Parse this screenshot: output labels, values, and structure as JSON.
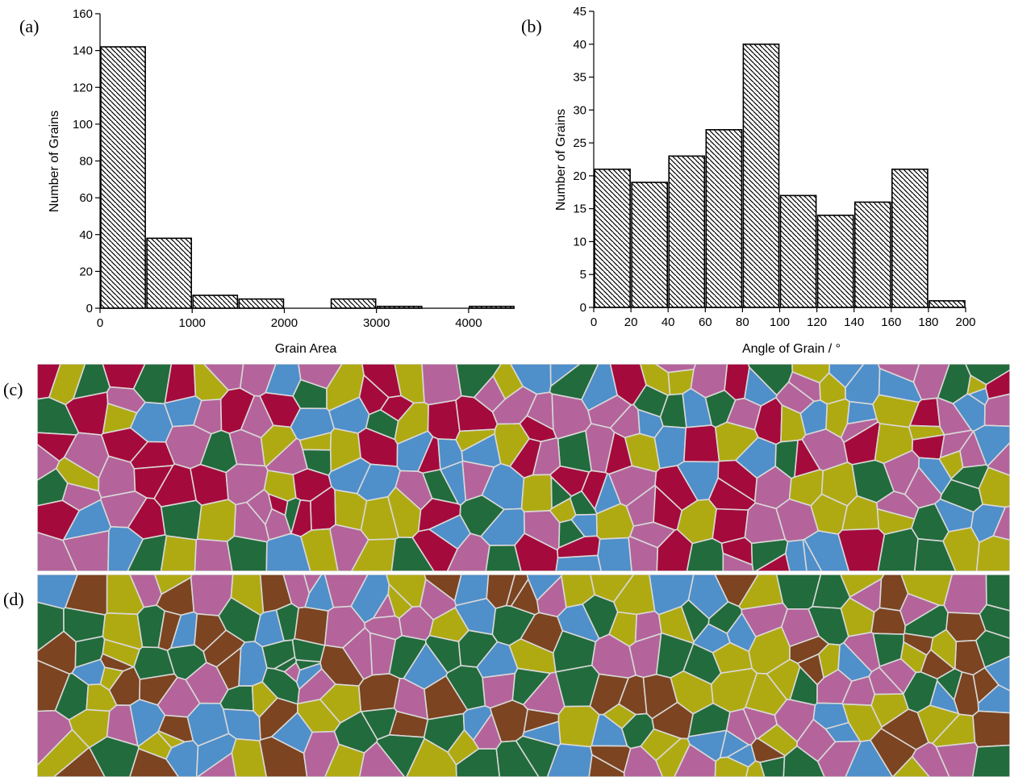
{
  "panels": {
    "a": "(a)",
    "b": "(b)",
    "c": "(c)",
    "d": "(d)"
  },
  "colors": {
    "blue": "#4f8fca",
    "green": "#226b3c",
    "yellow": "#b0aa12",
    "pink": "#b4649a",
    "red": "#a50a3c",
    "brown": "#7c4420",
    "boundary": "#d8d8d8"
  },
  "chart_data": [
    {
      "type": "bar",
      "panel": "(a)",
      "title": "",
      "xlabel": "Grain Area",
      "ylabel": "Number of Grains",
      "xlim": [
        0,
        4500
      ],
      "ylim": [
        0,
        160
      ],
      "xticks": [
        0,
        1000,
        2000,
        3000,
        4000
      ],
      "yticks": [
        0,
        20,
        40,
        60,
        80,
        100,
        120,
        140,
        160
      ],
      "bin_width": 500,
      "bins": [
        {
          "start": 0,
          "end": 500,
          "value": 142
        },
        {
          "start": 500,
          "end": 1000,
          "value": 38
        },
        {
          "start": 1000,
          "end": 1500,
          "value": 7
        },
        {
          "start": 1500,
          "end": 2000,
          "value": 5
        },
        {
          "start": 2000,
          "end": 2500,
          "value": 0
        },
        {
          "start": 2500,
          "end": 3000,
          "value": 5
        },
        {
          "start": 3000,
          "end": 3500,
          "value": 1
        },
        {
          "start": 3500,
          "end": 4000,
          "value": 0
        },
        {
          "start": 4000,
          "end": 4500,
          "value": 1
        }
      ],
      "grid": false
    },
    {
      "type": "bar",
      "panel": "(b)",
      "title": "",
      "xlabel": "Angle of Grain / °",
      "ylabel": "Number of Grains",
      "xlim": [
        0,
        200
      ],
      "ylim": [
        0,
        45
      ],
      "xticks": [
        0,
        20,
        40,
        60,
        80,
        100,
        120,
        140,
        160,
        180,
        200
      ],
      "yticks": [
        0,
        5,
        10,
        15,
        20,
        25,
        30,
        35,
        40,
        45
      ],
      "bin_width": 20,
      "bins": [
        {
          "start": 0,
          "end": 20,
          "value": 21
        },
        {
          "start": 20,
          "end": 40,
          "value": 19
        },
        {
          "start": 40,
          "end": 60,
          "value": 23
        },
        {
          "start": 60,
          "end": 80,
          "value": 27
        },
        {
          "start": 80,
          "end": 100,
          "value": 40
        },
        {
          "start": 100,
          "end": 120,
          "value": 17
        },
        {
          "start": 120,
          "end": 140,
          "value": 14
        },
        {
          "start": 140,
          "end": 160,
          "value": 16
        },
        {
          "start": 160,
          "end": 180,
          "value": 21
        },
        {
          "start": 180,
          "end": 200,
          "value": 1
        }
      ],
      "grid": false
    }
  ],
  "grain_maps": {
    "c": {
      "palette": [
        "blue",
        "green",
        "yellow",
        "pink",
        "red"
      ],
      "columns": 30,
      "rows": 6
    },
    "d": {
      "palette": [
        "blue",
        "green",
        "yellow",
        "pink",
        "brown"
      ],
      "columns": 30,
      "rows": 6
    }
  }
}
